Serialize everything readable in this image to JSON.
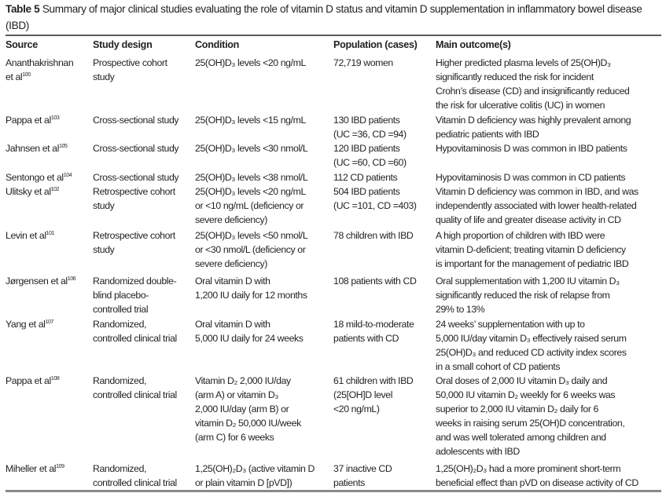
{
  "title": {
    "label": "Table 5",
    "text": "Summary of major clinical studies evaluating the role of vitamin D status and vitamin D supplementation in inflammatory bowel disease (IBD)"
  },
  "columns": [
    "Source",
    "Study design",
    "Condition",
    "Population (cases)",
    "Main outcome(s)"
  ],
  "rows": [
    {
      "source": [
        "Ananthakrishnan",
        "et al"
      ],
      "ref": "100",
      "design": [
        "Prospective cohort",
        "study"
      ],
      "condition": [
        "25(OH)D₃ levels <20 ng/mL"
      ],
      "population": [
        "72,719 women"
      ],
      "outcome": [
        "Higher predicted plasma levels of 25(OH)D₃",
        "significantly reduced the risk for incident",
        "Crohn’s disease (CD) and insignificantly reduced",
        "the risk for ulcerative colitis (UC) in women"
      ]
    },
    {
      "source": [
        "Pappa et al"
      ],
      "ref": "103",
      "design": [
        "Cross-sectional study"
      ],
      "condition": [
        "25(OH)D₃ levels <15 ng/mL"
      ],
      "population": [
        "130 IBD patients",
        "(UC =36, CD =94)"
      ],
      "outcome": [
        "Vitamin D deficiency was highly prevalent among",
        "pediatric patients with IBD"
      ]
    },
    {
      "source": [
        "Jahnsen et al"
      ],
      "ref": "105",
      "design": [
        "Cross-sectional study"
      ],
      "condition": [
        "25(OH)D₃ levels <30 nmol/L"
      ],
      "population": [
        "120 IBD patients",
        "(UC =60, CD =60)"
      ],
      "outcome": [
        "Hypovitaminosis D was common in IBD patients"
      ]
    },
    {
      "source": [
        "Sentongo et al"
      ],
      "ref": "104",
      "design": [
        "Cross-sectional study"
      ],
      "condition": [
        "25(OH)D₃ levels <38 nmol/L"
      ],
      "population": [
        "112 CD patients"
      ],
      "outcome": [
        "Hypovitaminosis D was common in CD patients"
      ]
    },
    {
      "source": [
        "Ulitsky et al"
      ],
      "ref": "102",
      "design": [
        "Retrospective cohort",
        "study"
      ],
      "condition": [
        "25(OH)D₃ levels <20 ng/mL",
        "or <10 ng/mL (deficiency or",
        "severe deficiency)"
      ],
      "population": [
        "504 IBD patients",
        "(UC =101, CD =403)"
      ],
      "outcome": [
        "Vitamin D deficiency was common in IBD, and was",
        "independently associated with lower health-related",
        "quality of life and greater disease activity in CD"
      ]
    },
    {
      "source": [
        "Levin et al"
      ],
      "ref": "101",
      "design": [
        "Retrospective cohort",
        "study"
      ],
      "condition": [
        "25(OH)D₃ levels <50 nmol/L",
        "or <30 nmol/L (deficiency or",
        "severe deficiency)"
      ],
      "population": [
        "78 children with IBD"
      ],
      "outcome": [
        "A high proportion of children with IBD were",
        "vitamin D-deficient; treating vitamin D deficiency",
        "is important for the management of pediatric IBD"
      ]
    },
    {
      "source": [
        "Jørgensen et al"
      ],
      "ref": "106",
      "design": [
        "Randomized double-",
        "blind placebo-",
        "controlled trial"
      ],
      "condition": [
        "Oral vitamin D with",
        "1,200 IU daily for 12 months"
      ],
      "population": [
        "108 patients with CD"
      ],
      "outcome": [
        "Oral supplementation with 1,200 IU vitamin D₃",
        "significantly reduced the risk of relapse from",
        "29% to 13%"
      ]
    },
    {
      "source": [
        "Yang et al"
      ],
      "ref": "107",
      "design": [
        "Randomized,",
        "controlled clinical trial"
      ],
      "condition": [
        "Oral vitamin D with",
        "5,000 IU daily for 24 weeks"
      ],
      "population": [
        "18 mild-to-moderate",
        "patients with CD"
      ],
      "outcome": [
        "24 weeks’ supplementation with up to",
        "5,000 IU/day vitamin D₃ effectively raised serum",
        "25(OH)D₃ and reduced CD activity index scores",
        "in a small cohort of CD patients"
      ]
    },
    {
      "source": [
        "Pappa et al"
      ],
      "ref": "108",
      "design": [
        "Randomized,",
        "controlled clinical trial"
      ],
      "condition": [
        "Vitamin D₂ 2,000 IU/day",
        "(arm A) or vitamin D₃",
        "2,000 IU/day (arm B) or",
        "vitamin D₂ 50,000 IU/week",
        "(arm C) for 6 weeks"
      ],
      "population": [
        "61 children with IBD",
        "(25[OH]D level",
        "<20 ng/mL)"
      ],
      "outcome": [
        "Oral doses of 2,000 IU vitamin D₃ daily and",
        "50,000 IU vitamin D₂ weekly for 6 weeks was",
        "superior to 2,000 IU vitamin D₂ daily for 6",
        "weeks in raising serum 25(OH)D concentration,",
        "and was well tolerated among children and",
        "adolescents with IBD"
      ]
    },
    {
      "source": [
        "Miheller et al"
      ],
      "ref": "109",
      "design": [
        "Randomized,",
        "controlled clinical trial"
      ],
      "condition": [
        "1,25(OH)₂D₃ (active vitamin D",
        "or plain vitamin D [pVD])"
      ],
      "population": [
        "37 inactive CD",
        "patients"
      ],
      "outcome": [
        "1,25(OH)₂D₃ had a more prominent short-term",
        "beneficial effect than pVD on disease activity of CD"
      ]
    }
  ]
}
